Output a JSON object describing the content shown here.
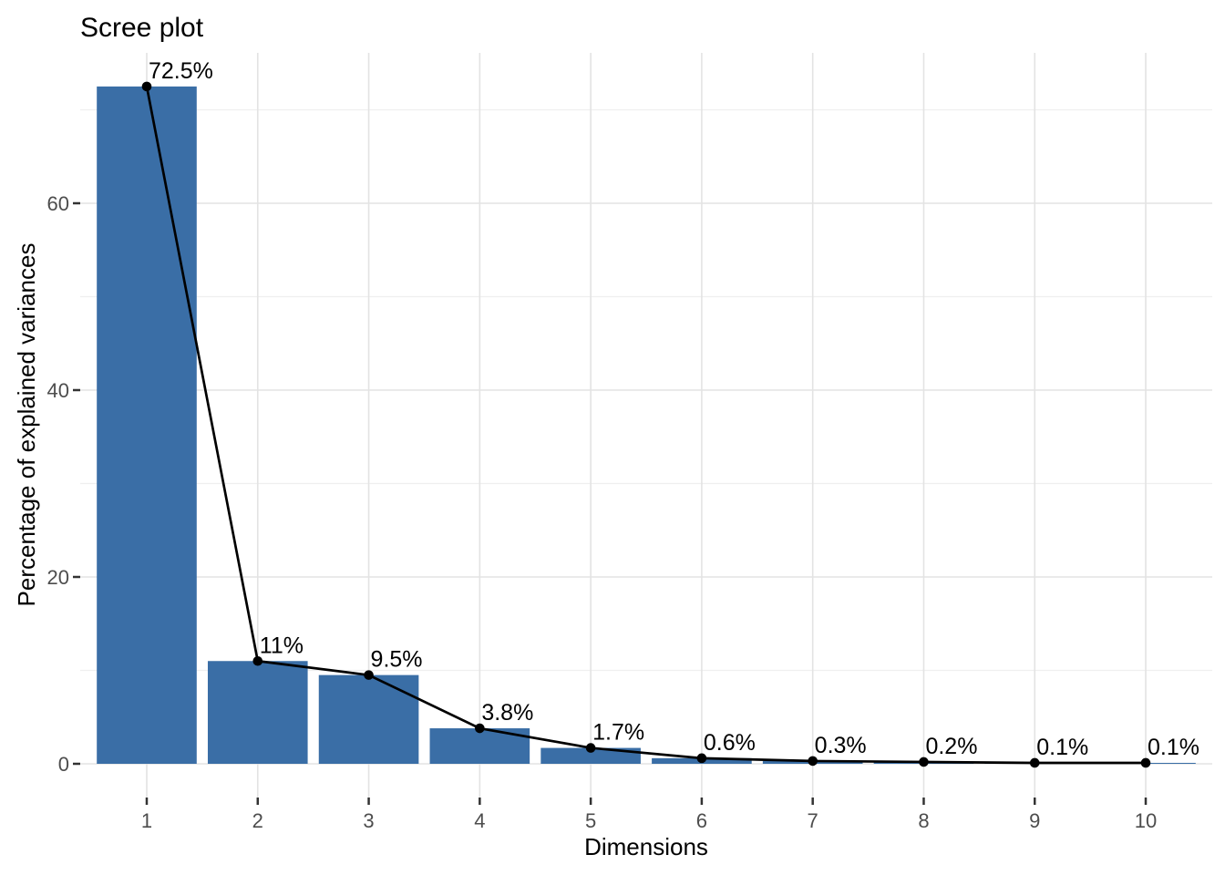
{
  "title": "Scree plot",
  "chart_data": {
    "type": "bar",
    "overlay": "line-with-points",
    "title": "Scree plot",
    "xlabel": "Dimensions",
    "ylabel": "Percentage of explained variances",
    "categories": [
      "1",
      "2",
      "3",
      "4",
      "5",
      "6",
      "7",
      "8",
      "9",
      "10"
    ],
    "values": [
      72.5,
      11,
      9.5,
      3.8,
      1.7,
      0.6,
      0.3,
      0.2,
      0.1,
      0.1
    ],
    "point_labels": [
      "72.5%",
      "11%",
      "9.5%",
      "3.8%",
      "1.7%",
      "0.6%",
      "0.3%",
      "0.2%",
      "0.1%",
      "0.1%"
    ],
    "yticks": [
      0,
      20,
      40,
      60
    ],
    "yticks_minor": [
      10,
      30,
      50,
      70
    ],
    "ylim": [
      -3.6,
      76.1
    ],
    "grid": true,
    "legend": false,
    "colors": {
      "bar_fill": "#3A6EA6",
      "line": "#000000",
      "point": "#000000",
      "grid_major": "#E3E3E3",
      "grid_minor": "#EFEFEF",
      "tick_mark": "#333333",
      "tick_label": "#4D4D4D",
      "text": "#000000"
    }
  }
}
